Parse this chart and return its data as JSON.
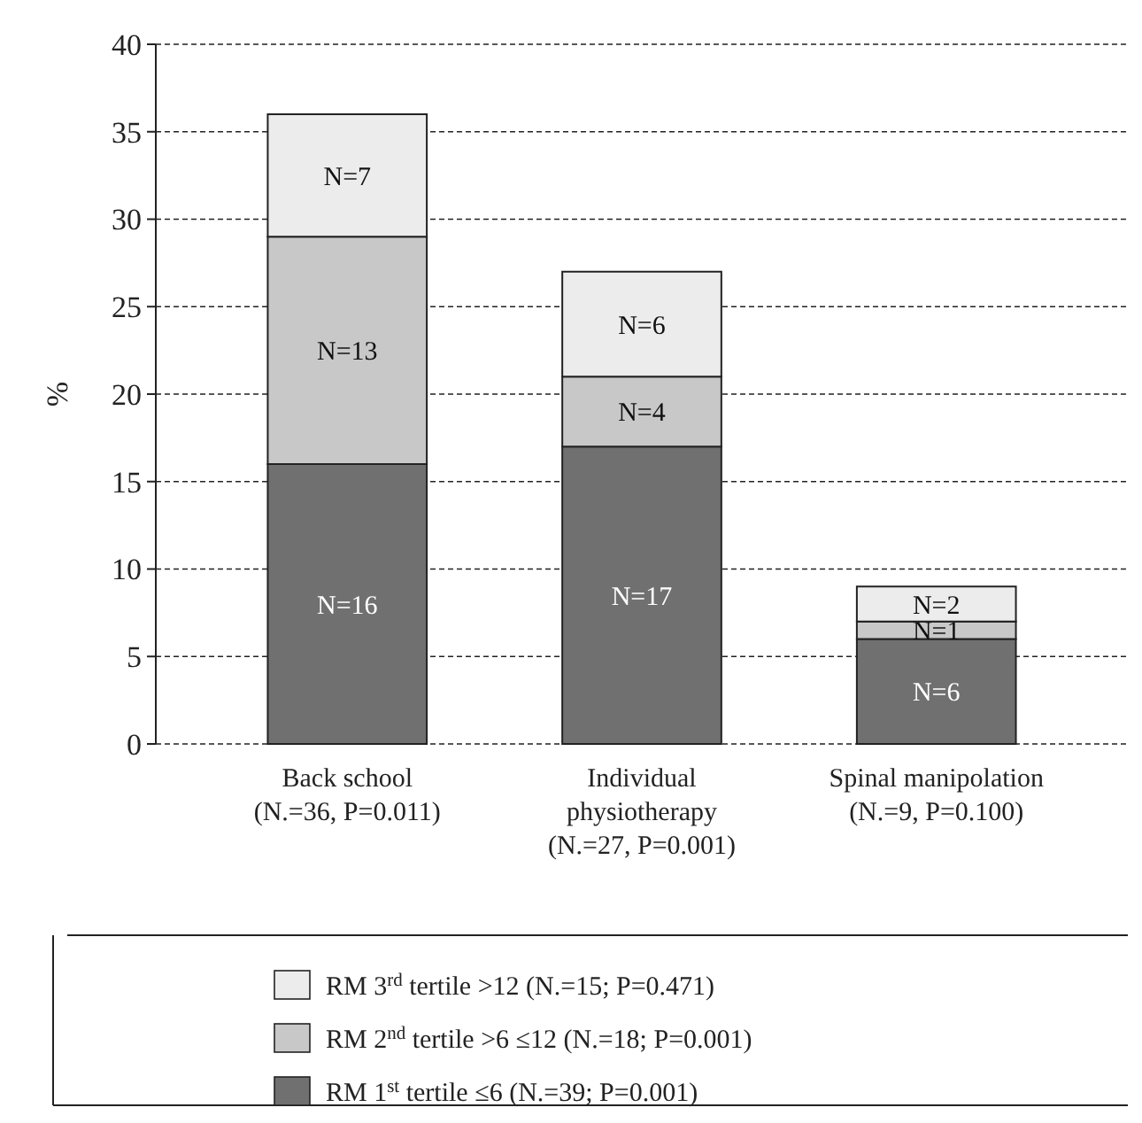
{
  "chart_data": {
    "type": "bar",
    "stacked": true,
    "ylabel": "%",
    "categories": [
      "Back school\n(N.=36, P=0.011)",
      "Individual\nphysiotherapy\n(N.=27, P=0.001)",
      "Spinal manipolation\n(N.=9, P=0.100)"
    ],
    "series": [
      {
        "name": "RM 1$^{st}$ tertile ≤6 (N.=39; P=0.001)",
        "color": "#707070",
        "values": [
          16,
          17,
          6
        ],
        "value_labels": [
          "N=16",
          "N=17",
          "N=6"
        ]
      },
      {
        "name": "RM 2$^{nd}$ tertile >6 ≤12 (N.=18; P=0.001)",
        "color": "#c8c8c8",
        "values": [
          13,
          4,
          1
        ],
        "value_labels": [
          "N=13",
          "N=4",
          "N=1"
        ]
      },
      {
        "name": "RM 3$^{rd}$ tertile >12 (N.=15; P=0.471)",
        "color": "#ececec",
        "values": [
          7,
          6,
          2
        ],
        "value_labels": [
          "N=7",
          "N=6",
          "N=2"
        ]
      }
    ],
    "ylim": [
      0,
      40
    ],
    "yticks": [
      0,
      5,
      10,
      15,
      20,
      25,
      30,
      35,
      40
    ],
    "grid": "y",
    "legend": "bottom"
  }
}
